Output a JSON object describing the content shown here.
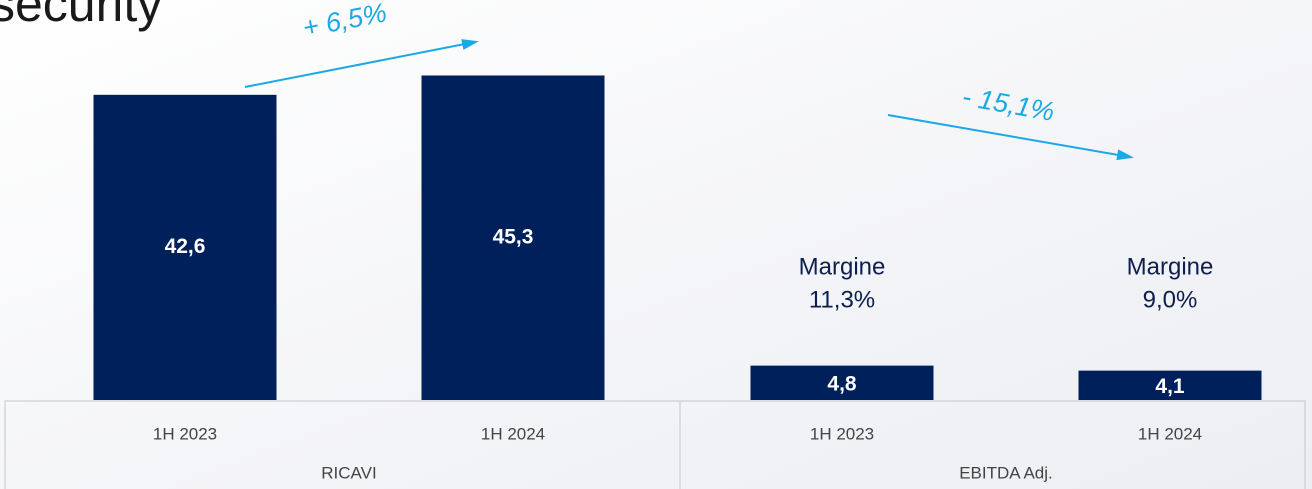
{
  "chart_data": {
    "type": "bar",
    "title": "security",
    "categories": [
      "1H 2023",
      "1H 2024",
      "1H 2023",
      "1H 2024"
    ],
    "groups": [
      "RICAVI",
      "EBITDA Adj."
    ],
    "values": [
      42.6,
      45.3,
      4.8,
      4.1
    ],
    "value_labels": [
      "42,6",
      "45,3",
      "4,8",
      "4,1"
    ],
    "color": "#00205b",
    "ylim": [
      0,
      55
    ],
    "growth_labels": [
      "+ 6,5%",
      "- 15,1%"
    ],
    "margin_labels": [
      [
        "Margine",
        "11,3%"
      ],
      [
        "Margine",
        "9,0%"
      ]
    ],
    "arrow_color": "#1ba9e6"
  }
}
